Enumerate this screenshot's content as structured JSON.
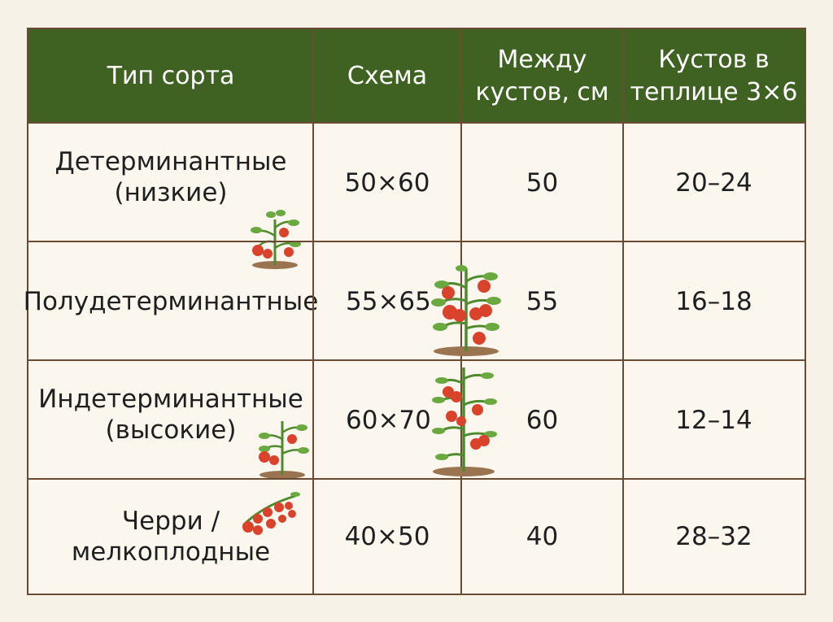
{
  "table": {
    "headers": [
      "Тип сорта",
      "Схема",
      "Между кустов, см",
      "Кустов в теплице 3×6"
    ],
    "header_lines": {
      "col3": [
        "Между",
        "кустов, см"
      ],
      "col4": [
        "Кустов в",
        "теплице 3×6"
      ]
    },
    "rows": [
      {
        "type_lines": [
          "Детерминантные",
          "(низкие)"
        ],
        "scheme": "50×60",
        "between": "50",
        "bushes": "20–24",
        "icon": "short-tomato-plant-icon"
      },
      {
        "type_lines": [
          "Полудетерминантные"
        ],
        "scheme": "55×65",
        "between": "55",
        "bushes": "16–18",
        "icon": "medium-tomato-plant-icon"
      },
      {
        "type_lines": [
          "Индетерминантные",
          "(высокие)"
        ],
        "scheme": "60×70",
        "between": "60",
        "bushes": "12–14",
        "icon": "tall-tomato-plant-icon"
      },
      {
        "type_lines": [
          "Черри /",
          "мелкоплодные"
        ],
        "scheme": "40×50",
        "between": "40",
        "bushes": "28–32",
        "icon": "cherry-tomato-cluster-icon"
      }
    ]
  },
  "colors": {
    "header_bg": "#3f6223",
    "border": "#6a4a30",
    "background": "#f7f2e7",
    "tomato": "#d9432b",
    "leaf": "#5f9a3a"
  }
}
